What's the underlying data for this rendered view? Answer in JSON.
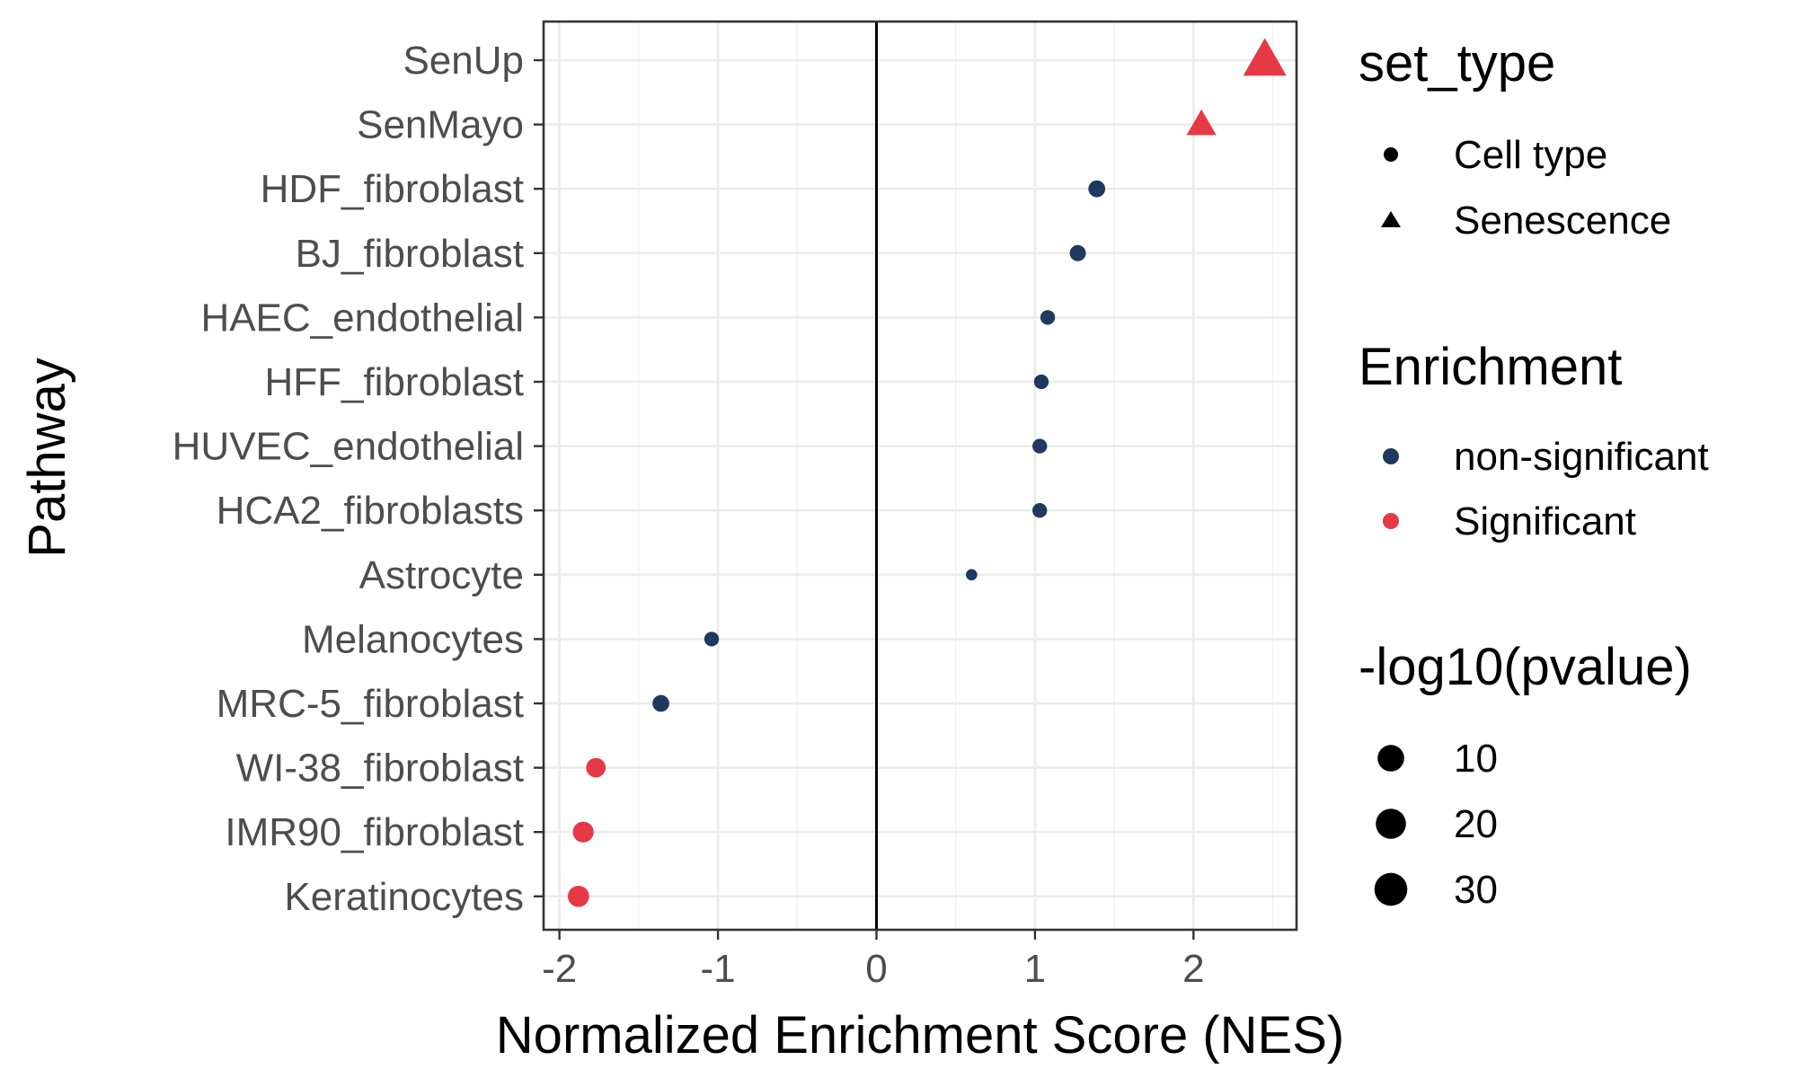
{
  "chart_data": {
    "type": "scatter",
    "title": "",
    "xlabel": "Normalized Enrichment Score (NES)",
    "ylabel": "Pathway",
    "xlim": [
      -2.1,
      2.65
    ],
    "x_ticks": [
      -2,
      -1,
      0,
      1,
      2
    ],
    "x_tick_labels": [
      "-2",
      "-1",
      "0",
      "1",
      "2"
    ],
    "reference_line_x": 0,
    "grid": true,
    "legend_position": "right",
    "categories": [
      "SenUp",
      "SenMayo",
      "HDF_fibroblast",
      "BJ_fibroblast",
      "HAEC_endothelial",
      "HFF_fibroblast",
      "HUVEC_endothelial",
      "HCA2_fibroblasts",
      "Astrocyte",
      "Melanocytes",
      "MRC-5_fibroblast",
      "WI-38_fibroblast",
      "IMR90_fibroblast",
      "Keratinocytes"
    ],
    "points": [
      {
        "pathway": "SenUp",
        "nes": 2.45,
        "neg_log10_pvalue": 34,
        "set_type": "Senescence",
        "enrichment": "Significant"
      },
      {
        "pathway": "SenMayo",
        "nes": 2.05,
        "neg_log10_pvalue": 12,
        "set_type": "Senescence",
        "enrichment": "Significant"
      },
      {
        "pathway": "HDF_fibroblast",
        "nes": 1.39,
        "neg_log10_pvalue": 3.5,
        "set_type": "Cell type",
        "enrichment": "non-significant"
      },
      {
        "pathway": "BJ_fibroblast",
        "nes": 1.27,
        "neg_log10_pvalue": 3,
        "set_type": "Cell type",
        "enrichment": "non-significant"
      },
      {
        "pathway": "HAEC_endothelial",
        "nes": 1.08,
        "neg_log10_pvalue": 2,
        "set_type": "Cell type",
        "enrichment": "non-significant"
      },
      {
        "pathway": "HFF_fibroblast",
        "nes": 1.04,
        "neg_log10_pvalue": 2,
        "set_type": "Cell type",
        "enrichment": "non-significant"
      },
      {
        "pathway": "HUVEC_endothelial",
        "nes": 1.03,
        "neg_log10_pvalue": 2,
        "set_type": "Cell type",
        "enrichment": "non-significant"
      },
      {
        "pathway": "HCA2_fibroblasts",
        "nes": 1.03,
        "neg_log10_pvalue": 2,
        "set_type": "Cell type",
        "enrichment": "non-significant"
      },
      {
        "pathway": "Astrocyte",
        "nes": 0.6,
        "neg_log10_pvalue": 0.5,
        "set_type": "Cell type",
        "enrichment": "non-significant"
      },
      {
        "pathway": "Melanocytes",
        "nes": -1.04,
        "neg_log10_pvalue": 2,
        "set_type": "Cell type",
        "enrichment": "non-significant"
      },
      {
        "pathway": "MRC-5_fibroblast",
        "nes": -1.36,
        "neg_log10_pvalue": 3.5,
        "set_type": "Cell type",
        "enrichment": "non-significant"
      },
      {
        "pathway": "WI-38_fibroblast",
        "nes": -1.77,
        "neg_log10_pvalue": 6,
        "set_type": "Cell type",
        "enrichment": "Significant"
      },
      {
        "pathway": "IMR90_fibroblast",
        "nes": -1.85,
        "neg_log10_pvalue": 7.5,
        "set_type": "Cell type",
        "enrichment": "Significant"
      },
      {
        "pathway": "Keratinocytes",
        "nes": -1.88,
        "neg_log10_pvalue": 8,
        "set_type": "Cell type",
        "enrichment": "Significant"
      }
    ],
    "legends": {
      "shape": {
        "title": "set_type",
        "entries": [
          {
            "label": "Cell type",
            "shape": "circle"
          },
          {
            "label": "Senescence",
            "shape": "triangle"
          }
        ]
      },
      "color": {
        "title": "Enrichment",
        "entries": [
          {
            "label": "non-significant",
            "color": "#1f3a5f"
          },
          {
            "label": "Significant",
            "color": "#e63946"
          }
        ]
      },
      "size": {
        "title": "-log10(pvalue)",
        "entries": [
          {
            "label": "10",
            "value": 10
          },
          {
            "label": "20",
            "value": 20
          },
          {
            "label": "30",
            "value": 30
          }
        ]
      }
    }
  }
}
